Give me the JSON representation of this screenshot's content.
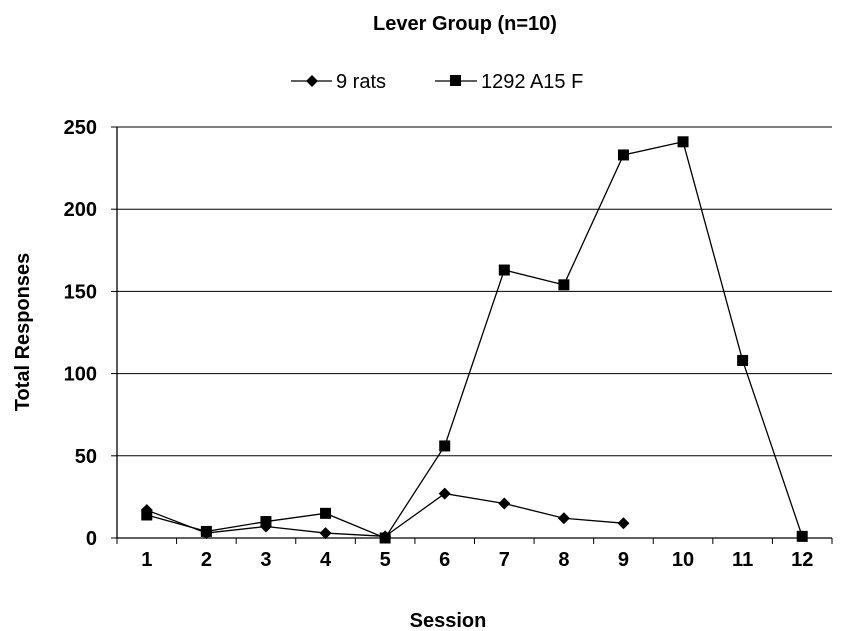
{
  "chart_data": {
    "type": "line",
    "title": "Lever Group (n=10)",
    "xlabel": "Session",
    "ylabel": "Total Responses",
    "categories": [
      "1",
      "2",
      "3",
      "4",
      "5",
      "6",
      "7",
      "8",
      "9",
      "10",
      "11",
      "12"
    ],
    "ylim": [
      0,
      250
    ],
    "yticks": [
      "0",
      "50",
      "100",
      "150",
      "200",
      "250"
    ],
    "grid": "horizontal",
    "legend_position": "top",
    "series": [
      {
        "name": "9 rats",
        "marker": "diamond",
        "color": "#000000",
        "values": [
          17,
          3,
          7,
          3,
          1,
          27,
          21,
          12,
          9,
          null,
          null,
          null
        ]
      },
      {
        "name": "1292 A15 F",
        "marker": "square",
        "color": "#000000",
        "values": [
          14,
          4,
          10,
          15,
          0,
          56,
          163,
          154,
          233,
          241,
          108,
          1
        ]
      }
    ]
  }
}
